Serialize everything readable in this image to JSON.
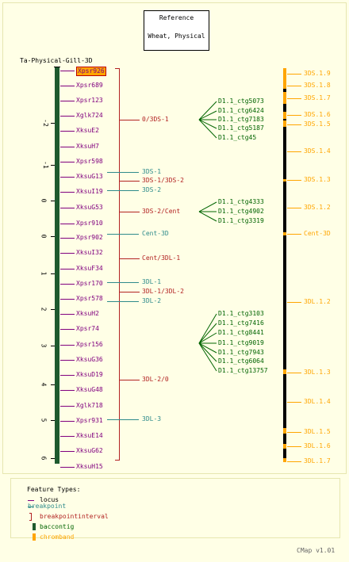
{
  "title_box": {
    "line1": "Reference",
    "line2": "Wheat, Physical"
  },
  "map_name": "Ta-Physical-Gill-3D",
  "axis_ticks": [
    "-2",
    "-1",
    "0",
    "0",
    "1",
    "2",
    "3",
    "4",
    "5",
    "6"
  ],
  "loci": [
    "Xpsr926",
    "Xpsr689",
    "Xpsr123",
    "Xglk724",
    "XksuE2",
    "XksuH7",
    "Xpsr598",
    "XksuG13",
    "XksuI19",
    "XksuG53",
    "Xpsr910",
    "Xpsr902",
    "XksuI32",
    "XksuF34",
    "Xpsr170",
    "Xpsr578",
    "XksuH2",
    "Xpsr74",
    "Xpsr156",
    "XksuG36",
    "XksuD19",
    "XksuG48",
    "Xglk718",
    "Xpsr931",
    "XksuE14",
    "XksuG62",
    "XksuH15"
  ],
  "intervals": [
    "0/3DS-1",
    "3DS-1/3DS-2",
    "3DS-2/Cent",
    "Cent/3DL-1",
    "3DL-1/3DL-2",
    "3DL-2/0"
  ],
  "breakpoints": [
    "3DS-1",
    "3DS-2",
    "Cent-3D",
    "3DL-1",
    "3DL-2",
    "3DL-3"
  ],
  "contig_groups": [
    [
      "D1.1_ctg5073",
      "D1.1_ctg6424",
      "D1.1_ctg7183",
      "D1.1_ctg5187",
      "D1.1_ctg45"
    ],
    [
      "D1.1_ctg4333",
      "D1.1_ctg4902",
      "D1.1_ctg3319"
    ],
    [
      "D1.1_ctg3103",
      "D1.1_ctg7416",
      "D1.1_ctg8441",
      "D1.1_ctg9019",
      "D1.1_ctg7943",
      "D1.1_ctg6064",
      "D1.1_ctg13757"
    ]
  ],
  "chrombands": [
    "3DS.1.9",
    "3DS.1.8",
    "3DS.1.7",
    "3DS.1.6",
    "3DS.1.5",
    "3DS.1.4",
    "3DS.1.3",
    "3DS.1.2",
    "Cent-3D",
    "3DL.1.2",
    "3DL.1.3",
    "3DL.1.4",
    "3DL.1.5",
    "3DL.1.6",
    "3DL.1.7"
  ],
  "legend": {
    "heading": "Feature Types:",
    "items": [
      "locus",
      "breakpoint",
      "breakpointinterval",
      "baccontig",
      "chromband"
    ]
  },
  "version": "CMap v1.01",
  "colors": {
    "locus": "#80007f",
    "breakpoint": "#2e8b8b",
    "interval": "#b22222",
    "contig_text": "#006400",
    "baccontig": "#1e5a2e",
    "chromband": "#ffa500",
    "background": "#ffffe6",
    "highlight": "#ffa500"
  }
}
